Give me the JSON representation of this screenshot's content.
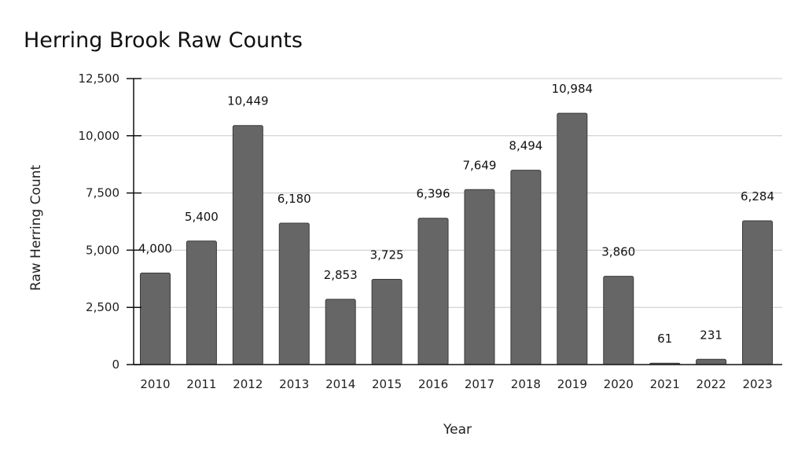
{
  "chart_data": {
    "type": "bar",
    "title": "Herring Brook Raw Counts",
    "xlabel": "Year",
    "ylabel": "Raw Herring Count",
    "categories": [
      "2010",
      "2011",
      "2012",
      "2013",
      "2014",
      "2015",
      "2016",
      "2017",
      "2018",
      "2019",
      "2020",
      "2021",
      "2022",
      "2023"
    ],
    "values": [
      4000,
      5400,
      10449,
      6180,
      2853,
      3725,
      6396,
      7649,
      8494,
      10984,
      3860,
      61,
      231,
      6284
    ],
    "data_labels": [
      "4,000",
      "5,400",
      "10,449",
      "6,180",
      "2,853",
      "3,725",
      "6,396",
      "7,649",
      "8,494",
      "10,984",
      "3,860",
      "61",
      "231",
      "6,284"
    ],
    "ylim": [
      0,
      12500
    ],
    "yticks": [
      "0",
      "2,500",
      "5,000",
      "7,500",
      "10,000",
      "12,500"
    ],
    "grid": true,
    "bar_color": "#666666",
    "bar_border": "#3a3a3a"
  }
}
